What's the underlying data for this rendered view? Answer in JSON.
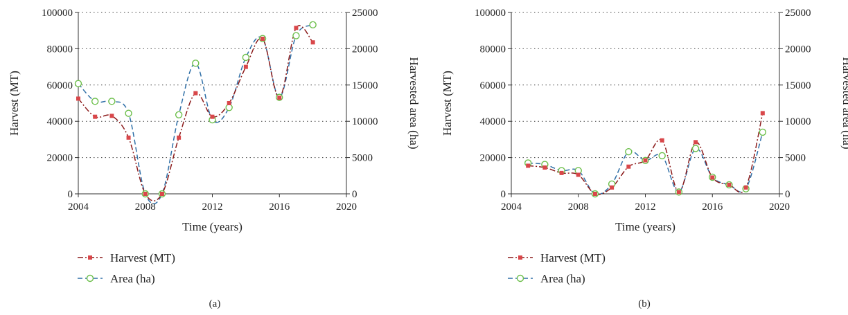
{
  "colors": {
    "harvest": "#d9474a",
    "harvest_line": "#8b1a1a",
    "area_marker": "#6cbf4a",
    "area_line": "#2f6fa7",
    "grid": "#444444",
    "axis": "#333333"
  },
  "chart_data": [
    {
      "type": "line",
      "panel_label": "(a)",
      "xlabel": "Time (years)",
      "ylabel": "Harvest (MT)",
      "y2label": "Harvested area (ha)",
      "xlim": [
        2004,
        2020
      ],
      "xticks": [
        "2004",
        "2008",
        "2012",
        "2016",
        "2020"
      ],
      "ylim": [
        0,
        100000
      ],
      "yticks": [
        "0",
        "20000",
        "40000",
        "60000",
        "80000",
        "100000"
      ],
      "y2lim": [
        0,
        25000
      ],
      "y2ticks": [
        "0",
        "5000",
        "10000",
        "15000",
        "20000",
        "25000"
      ],
      "grid": "horizontal dotted",
      "legend": "bottom-left",
      "series": [
        {
          "name": "Harvest (MT)",
          "axis": "left",
          "marker": "square",
          "x": [
            2004,
            2005,
            2006,
            2007,
            2008,
            2009,
            2010,
            2011,
            2012,
            2013,
            2014,
            2015,
            2016,
            2017,
            2018
          ],
          "y": [
            52500,
            42500,
            43000,
            31000,
            0,
            0,
            31000,
            55500,
            42500,
            50000,
            70000,
            85500,
            53000,
            91500,
            83500
          ]
        },
        {
          "name": "Area (ha)",
          "axis": "right",
          "marker": "circle",
          "x": [
            2004,
            2005,
            2006,
            2007,
            2008,
            2009,
            2010,
            2011,
            2012,
            2013,
            2014,
            2015,
            2016,
            2017,
            2018
          ],
          "y": [
            15200,
            12750,
            12750,
            11100,
            0,
            0,
            10900,
            18000,
            10200,
            11900,
            18800,
            21400,
            13300,
            21800,
            23300
          ]
        }
      ]
    },
    {
      "type": "line",
      "panel_label": "(b)",
      "xlabel": "Time (years)",
      "ylabel": "Harvest (MT)",
      "y2label": "Harvested area (ha)",
      "xlim": [
        2004,
        2020
      ],
      "xticks": [
        "2004",
        "2008",
        "2012",
        "2016",
        "2020"
      ],
      "ylim": [
        0,
        100000
      ],
      "yticks": [
        "0",
        "20000",
        "40000",
        "60000",
        "80000",
        "100000"
      ],
      "y2lim": [
        0,
        25000
      ],
      "y2ticks": [
        "0",
        "5000",
        "10000",
        "15000",
        "20000",
        "25000"
      ],
      "grid": "horizontal dotted",
      "legend": "bottom-left",
      "series": [
        {
          "name": "Harvest (MT)",
          "axis": "left",
          "marker": "square",
          "x": [
            2005,
            2006,
            2007,
            2008,
            2009,
            2010,
            2011,
            2012,
            2013,
            2014,
            2015,
            2016,
            2017,
            2018,
            2019
          ],
          "y": [
            15500,
            14500,
            11500,
            10500,
            0,
            3500,
            15000,
            18500,
            29500,
            1000,
            28500,
            9000,
            5000,
            3500,
            44500
          ]
        },
        {
          "name": "Area (ha)",
          "axis": "right",
          "marker": "circle",
          "x": [
            2005,
            2006,
            2007,
            2008,
            2009,
            2010,
            2011,
            2012,
            2013,
            2014,
            2015,
            2016,
            2017,
            2018,
            2019
          ],
          "y": [
            4250,
            4050,
            3200,
            3200,
            0,
            1350,
            5800,
            4600,
            5250,
            250,
            6250,
            2300,
            1250,
            700,
            8500
          ]
        }
      ]
    }
  ]
}
